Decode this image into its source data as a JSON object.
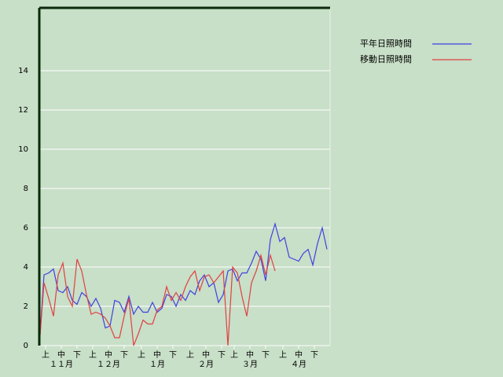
{
  "chart_data": {
    "type": "line",
    "x": [
      0,
      3,
      6,
      9,
      12,
      15,
      18,
      21,
      24,
      27,
      30,
      33,
      36,
      39,
      42,
      45,
      48,
      51,
      54,
      57,
      60,
      63,
      66,
      69,
      72,
      75,
      78,
      81,
      84,
      87,
      90,
      93,
      96,
      99,
      102,
      105,
      108,
      111,
      114,
      117,
      120,
      123,
      126,
      129,
      132,
      135,
      138,
      141,
      144,
      147,
      150,
      153,
      156,
      159,
      162,
      165,
      168,
      171,
      174,
      177,
      180,
      183
    ],
    "xlim": [
      0,
      185
    ],
    "xticks": [
      {
        "value": 4,
        "label": "上"
      },
      {
        "value": 14,
        "label": "中"
      },
      {
        "value": 24,
        "label": "下"
      },
      {
        "value": 34,
        "label": "上"
      },
      {
        "value": 44,
        "label": "中"
      },
      {
        "value": 54,
        "label": "下"
      },
      {
        "value": 65,
        "label": "上"
      },
      {
        "value": 75,
        "label": "中"
      },
      {
        "value": 85,
        "label": "下"
      },
      {
        "value": 96,
        "label": "上"
      },
      {
        "value": 106,
        "label": "中"
      },
      {
        "value": 116,
        "label": "下"
      },
      {
        "value": 124,
        "label": "上"
      },
      {
        "value": 134,
        "label": "中"
      },
      {
        "value": 144,
        "label": "下"
      },
      {
        "value": 155,
        "label": "上"
      },
      {
        "value": 165,
        "label": "中"
      },
      {
        "value": 175,
        "label": "下"
      }
    ],
    "month_labels": [
      {
        "value": 14,
        "label": "１１月"
      },
      {
        "value": 44,
        "label": "１２月"
      },
      {
        "value": 75,
        "label": "１月"
      },
      {
        "value": 106,
        "label": "２月"
      },
      {
        "value": 134,
        "label": "３月"
      },
      {
        "value": 165,
        "label": "４月"
      }
    ],
    "ylim": [
      0,
      17.2
    ],
    "yticks": [
      0,
      2,
      4,
      6,
      8,
      10,
      12,
      14
    ],
    "grid": true,
    "series": [
      {
        "name": "平年日照時間",
        "color": "#4040e0",
        "values": [
          0,
          3.6,
          3.7,
          3.9,
          2.8,
          2.7,
          3.0,
          2.3,
          2.1,
          2.7,
          2.5,
          2.0,
          2.4,
          1.9,
          0.9,
          1.0,
          2.3,
          2.2,
          1.7,
          2.5,
          1.6,
          2.0,
          1.7,
          1.7,
          2.2,
          1.7,
          1.9,
          2.6,
          2.5,
          2.0,
          2.6,
          2.3,
          2.8,
          2.6,
          3.3,
          3.6,
          3.0,
          3.2,
          2.2,
          2.6,
          3.8,
          3.9,
          3.3,
          3.7,
          3.7,
          4.2,
          4.8,
          4.4,
          3.3,
          5.4,
          6.2,
          5.3,
          5.5,
          4.5,
          4.4,
          4.3,
          4.7,
          4.9,
          4.1,
          5.2,
          6.0,
          4.9
        ]
      },
      {
        "name": "移動日照時間",
        "color": "#e04040",
        "values": [
          0,
          3.2,
          2.4,
          1.5,
          3.6,
          4.2,
          2.5,
          2.0,
          4.4,
          3.8,
          2.6,
          1.6,
          1.7,
          1.6,
          1.4,
          1.0,
          0.4,
          0.4,
          1.5,
          2.4,
          0,
          0.6,
          1.3,
          1.1,
          1.1,
          1.8,
          2.0,
          3.0,
          2.3,
          2.7,
          2.3,
          3.0,
          3.5,
          3.8,
          2.8,
          3.5,
          3.6,
          3.2,
          3.5,
          3.8,
          0,
          4.0,
          3.7,
          2.5,
          1.5,
          3.2,
          3.8,
          4.6,
          3.6,
          4.6,
          3.8,
          null,
          null,
          null,
          null,
          null,
          null,
          null,
          null,
          null,
          null,
          null
        ]
      }
    ]
  }
}
